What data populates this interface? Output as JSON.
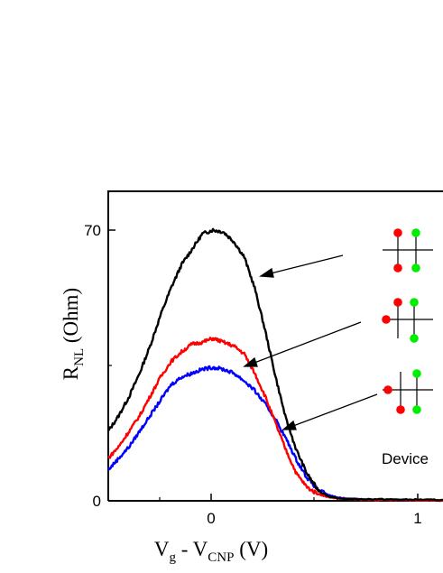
{
  "chart_data": {
    "type": "line",
    "xlabel": {
      "main": "V",
      "sub1": "g",
      "mid": " - V",
      "sub2": "CNP",
      "unit": " (V)"
    },
    "ylabel": {
      "main": "R",
      "sub": "NL",
      "unit": "  (Ohm)"
    },
    "xlim": [
      -0.5,
      1.1
    ],
    "ylim": [
      0,
      80
    ],
    "xticks": [
      {
        "value": 0,
        "label": "0"
      },
      {
        "value": 1,
        "label": "1"
      }
    ],
    "yticks": [
      {
        "value": 0,
        "label": "0"
      },
      {
        "value": 70,
        "label": "70"
      }
    ],
    "series": [
      {
        "color": "#000000",
        "points": [
          [
            -0.5,
            18
          ],
          [
            -0.45,
            22
          ],
          [
            -0.4,
            27
          ],
          [
            -0.35,
            33
          ],
          [
            -0.3,
            40
          ],
          [
            -0.25,
            48
          ],
          [
            -0.2,
            55
          ],
          [
            -0.15,
            61
          ],
          [
            -0.1,
            65
          ],
          [
            -0.05,
            69
          ],
          [
            0,
            70
          ],
          [
            0.05,
            69.5
          ],
          [
            0.1,
            67
          ],
          [
            0.15,
            63
          ],
          [
            0.2,
            55
          ],
          [
            0.25,
            44
          ],
          [
            0.3,
            32
          ],
          [
            0.35,
            21
          ],
          [
            0.4,
            13
          ],
          [
            0.45,
            7
          ],
          [
            0.5,
            3
          ],
          [
            0.55,
            1.2
          ],
          [
            0.6,
            0.6
          ],
          [
            0.7,
            0.4
          ],
          [
            0.8,
            0.4
          ],
          [
            0.9,
            0.3
          ],
          [
            1.0,
            0.3
          ],
          [
            1.1,
            0.2
          ]
        ]
      },
      {
        "color": "#ff0000",
        "points": [
          [
            -0.5,
            11
          ],
          [
            -0.45,
            14
          ],
          [
            -0.4,
            18
          ],
          [
            -0.35,
            22
          ],
          [
            -0.3,
            27
          ],
          [
            -0.25,
            32
          ],
          [
            -0.2,
            36
          ],
          [
            -0.15,
            38.5
          ],
          [
            -0.1,
            40.5
          ],
          [
            -0.05,
            41
          ],
          [
            0,
            42
          ],
          [
            0.05,
            41
          ],
          [
            0.1,
            40
          ],
          [
            0.15,
            38
          ],
          [
            0.2,
            33
          ],
          [
            0.25,
            27
          ],
          [
            0.3,
            20
          ],
          [
            0.35,
            13
          ],
          [
            0.4,
            7
          ],
          [
            0.45,
            3.5
          ],
          [
            0.5,
            1.8
          ],
          [
            0.55,
            1.0
          ],
          [
            0.6,
            0.6
          ],
          [
            0.7,
            0.3
          ],
          [
            0.8,
            0.2
          ],
          [
            0.9,
            0.2
          ],
          [
            1.0,
            0.1
          ],
          [
            1.1,
            0.1
          ]
        ]
      },
      {
        "color": "#0000ff",
        "points": [
          [
            -0.5,
            8
          ],
          [
            -0.45,
            11
          ],
          [
            -0.4,
            14
          ],
          [
            -0.35,
            18
          ],
          [
            -0.3,
            22
          ],
          [
            -0.25,
            26
          ],
          [
            -0.2,
            30
          ],
          [
            -0.15,
            32
          ],
          [
            -0.1,
            33
          ],
          [
            -0.05,
            34
          ],
          [
            0,
            34.5
          ],
          [
            0.05,
            34
          ],
          [
            0.1,
            33
          ],
          [
            0.15,
            31
          ],
          [
            0.2,
            28.5
          ],
          [
            0.25,
            25
          ],
          [
            0.3,
            21
          ],
          [
            0.35,
            16
          ],
          [
            0.4,
            10.5
          ],
          [
            0.45,
            6
          ],
          [
            0.5,
            3
          ],
          [
            0.55,
            1.5
          ],
          [
            0.6,
            0.8
          ],
          [
            0.7,
            0.4
          ],
          [
            0.8,
            0.3
          ],
          [
            0.9,
            0.2
          ],
          [
            1.0,
            0.2
          ],
          [
            1.1,
            0.1
          ]
        ]
      }
    ],
    "device_label": "Device",
    "annotation_arrows": 3,
    "device_icons": 3
  }
}
